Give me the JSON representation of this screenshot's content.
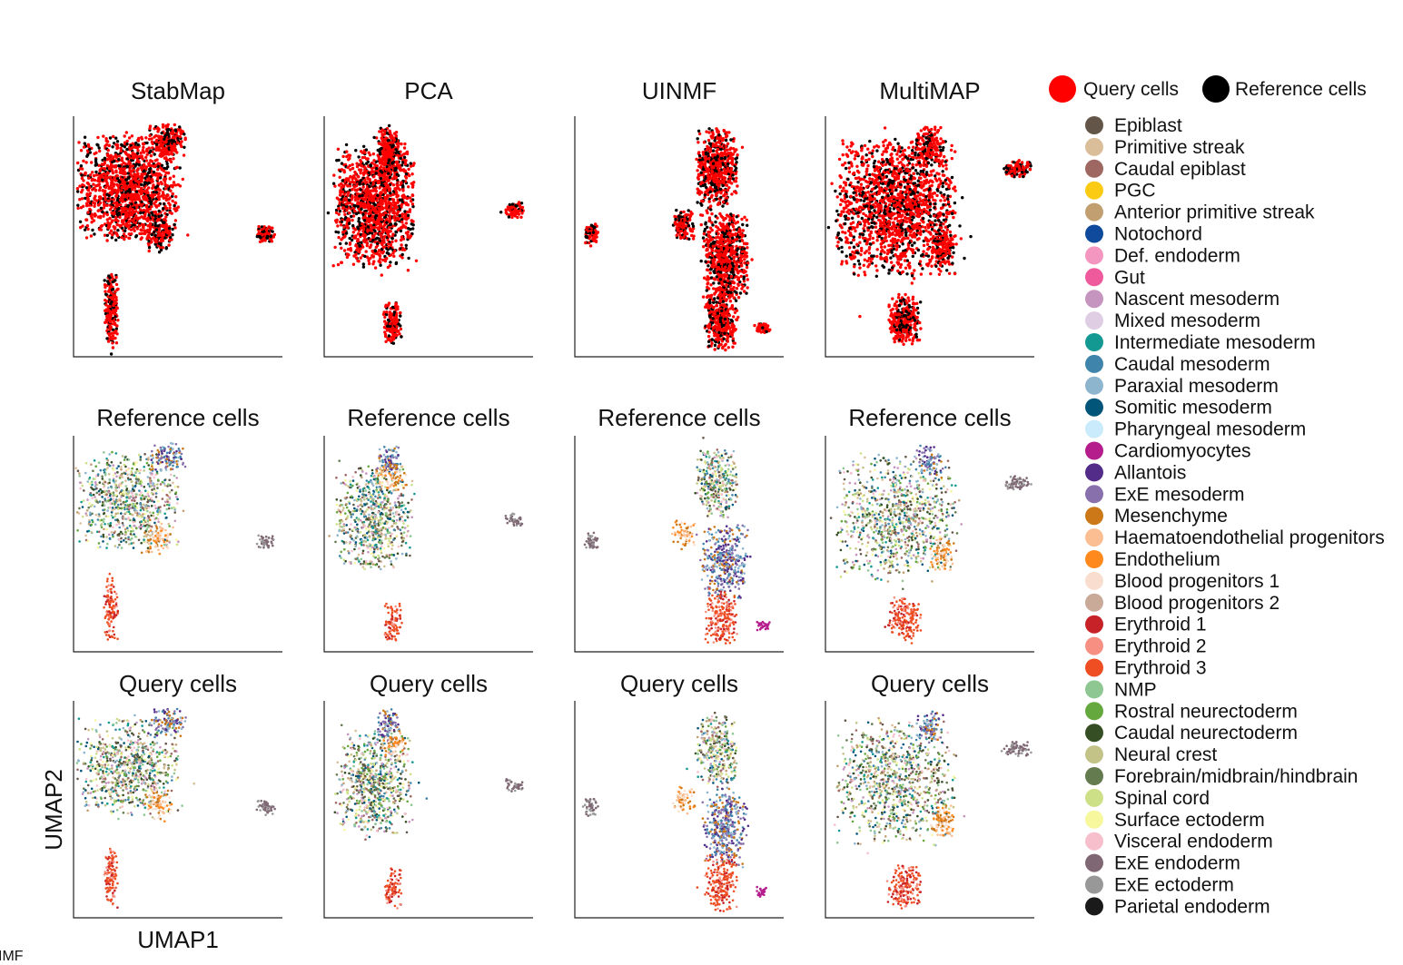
{
  "figure": {
    "columns": [
      "StabMap",
      "PCA",
      "UINMF",
      "MultiMAP"
    ],
    "row_titles": {
      "reference": "Reference cells",
      "query": "Query cells"
    },
    "axis_x_label": "UMAP1",
    "axis_y_label": "UMAP2",
    "corner_label": "IMF"
  },
  "legend_top": [
    {
      "label": "Query cells",
      "color": "#ff0000"
    },
    {
      "label": "Reference cells",
      "color": "#000000"
    }
  ],
  "legend_celltypes": [
    {
      "label": "Epiblast",
      "color": "#635547"
    },
    {
      "label": "Primitive streak",
      "color": "#DABE99"
    },
    {
      "label": "Caudal epiblast",
      "color": "#9E6762"
    },
    {
      "label": "PGC",
      "color": "#FACB12"
    },
    {
      "label": "Anterior primitive streak",
      "color": "#C19F70"
    },
    {
      "label": "Notochord",
      "color": "#0F4A9C"
    },
    {
      "label": "Def. endoderm",
      "color": "#F397C0"
    },
    {
      "label": "Gut",
      "color": "#EF5A9D"
    },
    {
      "label": "Nascent mesoderm",
      "color": "#C594BF"
    },
    {
      "label": "Mixed mesoderm",
      "color": "#DFCDE4"
    },
    {
      "label": "Intermediate mesoderm",
      "color": "#139992"
    },
    {
      "label": "Caudal mesoderm",
      "color": "#3F84AA"
    },
    {
      "label": "Paraxial mesoderm",
      "color": "#8DB5CE"
    },
    {
      "label": "Somitic mesoderm",
      "color": "#005579"
    },
    {
      "label": "Pharyngeal mesoderm",
      "color": "#C9EBFB"
    },
    {
      "label": "Cardiomyocytes",
      "color": "#B51D8D"
    },
    {
      "label": "Allantois",
      "color": "#532C8A"
    },
    {
      "label": "ExE mesoderm",
      "color": "#8870AD"
    },
    {
      "label": "Mesenchyme",
      "color": "#CC7818"
    },
    {
      "label": "Haematoendothelial progenitors",
      "color": "#FBBE92"
    },
    {
      "label": "Endothelium",
      "color": "#FF891C"
    },
    {
      "label": "Blood progenitors 1",
      "color": "#F9DECF"
    },
    {
      "label": "Blood progenitors 2",
      "color": "#C9A997"
    },
    {
      "label": "Erythroid 1",
      "color": "#C72228"
    },
    {
      "label": "Erythroid 2",
      "color": "#F79083"
    },
    {
      "label": "Erythroid 3",
      "color": "#EF4E22"
    },
    {
      "label": "NMP",
      "color": "#8EC792"
    },
    {
      "label": "Rostral neurectoderm",
      "color": "#65A83E"
    },
    {
      "label": "Caudal neurectoderm",
      "color": "#354E23"
    },
    {
      "label": "Neural crest",
      "color": "#C3C388"
    },
    {
      "label": "Forebrain/midbrain/hindbrain",
      "color": "#647A4F"
    },
    {
      "label": "Spinal cord",
      "color": "#CDE088"
    },
    {
      "label": "Surface ectoderm",
      "color": "#F7F79E"
    },
    {
      "label": "Visceral endoderm",
      "color": "#F6BFCB"
    },
    {
      "label": "ExE endoderm",
      "color": "#7F6874"
    },
    {
      "label": "ExE ectoderm",
      "color": "#989898"
    },
    {
      "label": "Parietal endoderm",
      "color": "#1A1A1A"
    }
  ],
  "chart_data": [
    {
      "type": "scatter",
      "method": "StabMap",
      "row": "query vs reference",
      "title": "StabMap",
      "series": [
        "Query cells",
        "Reference cells"
      ],
      "clusters": [
        {
          "cx": 0.26,
          "cy": 0.7,
          "rx": 0.22,
          "ry": 0.2,
          "n": 1400,
          "group": "main"
        },
        {
          "cx": 0.45,
          "cy": 0.9,
          "rx": 0.08,
          "ry": 0.06,
          "n": 200,
          "group": "arm"
        },
        {
          "cx": 0.41,
          "cy": 0.52,
          "rx": 0.06,
          "ry": 0.07,
          "n": 140,
          "group": "side"
        },
        {
          "cx": 0.92,
          "cy": 0.51,
          "rx": 0.04,
          "ry": 0.03,
          "n": 90,
          "group": "exe"
        },
        {
          "cx": 0.18,
          "cy": 0.2,
          "rx": 0.03,
          "ry": 0.13,
          "n": 220,
          "group": "ery"
        }
      ]
    },
    {
      "type": "scatter",
      "method": "PCA",
      "row": "query vs reference",
      "title": "PCA",
      "series": [
        "Query cells",
        "Reference cells"
      ],
      "clusters": [
        {
          "cx": 0.24,
          "cy": 0.62,
          "rx": 0.17,
          "ry": 0.22,
          "n": 1300,
          "group": "main"
        },
        {
          "cx": 0.31,
          "cy": 0.88,
          "rx": 0.05,
          "ry": 0.07,
          "n": 160,
          "group": "arm"
        },
        {
          "cx": 0.33,
          "cy": 0.8,
          "rx": 0.06,
          "ry": 0.06,
          "n": 120,
          "group": "side"
        },
        {
          "cx": 0.91,
          "cy": 0.61,
          "rx": 0.04,
          "ry": 0.03,
          "n": 70,
          "group": "exe"
        },
        {
          "cx": 0.33,
          "cy": 0.14,
          "rx": 0.04,
          "ry": 0.08,
          "n": 160,
          "group": "ery"
        }
      ]
    },
    {
      "type": "scatter",
      "method": "UINMF",
      "row": "query vs reference",
      "title": "UINMF",
      "series": [
        "Query cells",
        "Reference cells"
      ],
      "clusters": [
        {
          "cx": 0.68,
          "cy": 0.78,
          "rx": 0.09,
          "ry": 0.15,
          "n": 600,
          "group": "main"
        },
        {
          "cx": 0.72,
          "cy": 0.42,
          "rx": 0.1,
          "ry": 0.16,
          "n": 700,
          "group": "arm"
        },
        {
          "cx": 0.7,
          "cy": 0.16,
          "rx": 0.07,
          "ry": 0.12,
          "n": 380,
          "group": "ery"
        },
        {
          "cx": 0.52,
          "cy": 0.55,
          "rx": 0.05,
          "ry": 0.06,
          "n": 120,
          "group": "side"
        },
        {
          "cx": 0.9,
          "cy": 0.12,
          "rx": 0.03,
          "ry": 0.02,
          "n": 50,
          "group": "cardio"
        },
        {
          "cx": 0.08,
          "cy": 0.51,
          "rx": 0.03,
          "ry": 0.04,
          "n": 80,
          "group": "exe"
        }
      ]
    },
    {
      "type": "scatter",
      "method": "MultiMAP",
      "row": "query vs reference",
      "title": "MultiMAP",
      "series": [
        "Query cells",
        "Reference cells"
      ],
      "clusters": [
        {
          "cx": 0.34,
          "cy": 0.62,
          "rx": 0.26,
          "ry": 0.26,
          "n": 1700,
          "group": "main"
        },
        {
          "cx": 0.5,
          "cy": 0.88,
          "rx": 0.06,
          "ry": 0.07,
          "n": 160,
          "group": "arm"
        },
        {
          "cx": 0.56,
          "cy": 0.45,
          "rx": 0.05,
          "ry": 0.07,
          "n": 160,
          "group": "side"
        },
        {
          "cx": 0.38,
          "cy": 0.15,
          "rx": 0.07,
          "ry": 0.09,
          "n": 320,
          "group": "ery"
        },
        {
          "cx": 0.92,
          "cy": 0.78,
          "rx": 0.06,
          "ry": 0.03,
          "n": 120,
          "group": "exe"
        }
      ]
    }
  ]
}
